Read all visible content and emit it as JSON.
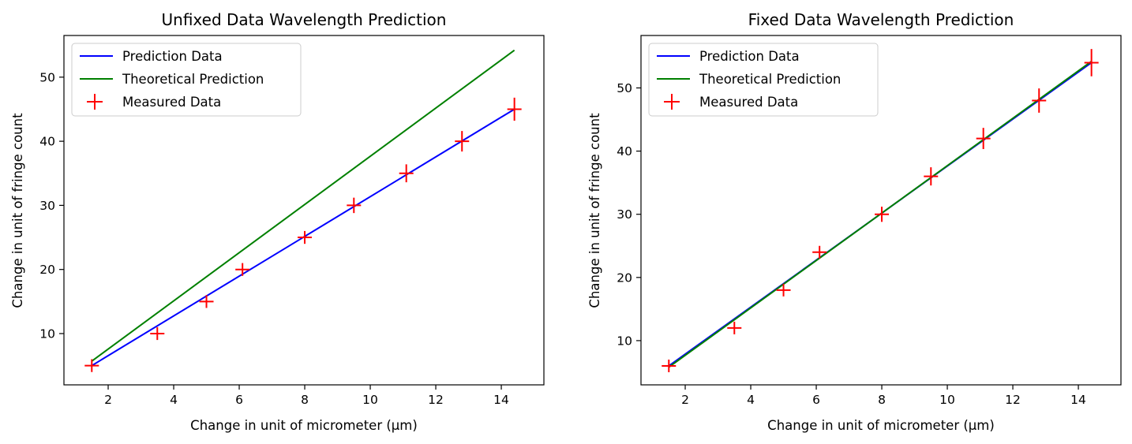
{
  "chart_data": [
    {
      "type": "line",
      "title": "Unfixed Data Wavelength Prediction",
      "xlabel": "Change in unit of micrometer (μm)",
      "ylabel": "Change in unit of fringe count",
      "xlim": [
        0.65,
        15.3
      ],
      "ylim": [
        2.0,
        56.5
      ],
      "xticks": [
        2,
        4,
        6,
        8,
        10,
        12,
        14
      ],
      "yticks": [
        10,
        20,
        30,
        40,
        50
      ],
      "grid": false,
      "legend_position": "upper-left",
      "series": [
        {
          "name": "Prediction Data",
          "style": "line",
          "color": "#0000ff",
          "x": [
            1.5,
            14.4
          ],
          "y": [
            5.0,
            45.0
          ]
        },
        {
          "name": "Theoretical Prediction",
          "style": "line",
          "color": "#008000",
          "x": [
            1.5,
            14.4
          ],
          "y": [
            5.7,
            54.2
          ]
        },
        {
          "name": "Measured Data",
          "style": "errorbar-plus",
          "color": "#ff0000",
          "x": [
            1.5,
            3.5,
            5.0,
            6.1,
            8.0,
            9.5,
            11.1,
            12.8,
            14.4
          ],
          "y": [
            5,
            10,
            15,
            20,
            25,
            30,
            35,
            40,
            45
          ]
        }
      ]
    },
    {
      "type": "line",
      "title": "Fixed Data Wavelength Prediction",
      "xlabel": "Change in unit of micrometer (μm)",
      "ylabel": "Change in unit of fringe count",
      "xlim": [
        0.65,
        15.3
      ],
      "ylim": [
        3.0,
        58.3
      ],
      "xticks": [
        2,
        4,
        6,
        8,
        10,
        12,
        14
      ],
      "yticks": [
        10,
        20,
        30,
        40,
        50
      ],
      "grid": false,
      "legend_position": "upper-left",
      "series": [
        {
          "name": "Prediction Data",
          "style": "line",
          "color": "#0000ff",
          "x": [
            1.5,
            14.4
          ],
          "y": [
            6.0,
            54.0
          ]
        },
        {
          "name": "Theoretical Prediction",
          "style": "line",
          "color": "#008000",
          "x": [
            1.5,
            14.4
          ],
          "y": [
            5.8,
            54.2
          ]
        },
        {
          "name": "Measured Data",
          "style": "errorbar-plus",
          "color": "#ff0000",
          "x": [
            1.5,
            3.5,
            5.0,
            6.1,
            8.0,
            9.5,
            11.1,
            12.8,
            14.4
          ],
          "y": [
            6,
            12,
            18,
            24,
            30,
            36,
            42,
            48,
            54
          ]
        }
      ]
    }
  ]
}
